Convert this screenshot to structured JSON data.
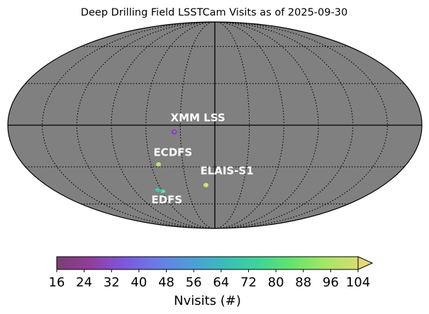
{
  "chart_data": {
    "type": "sky_map",
    "projection": "mollweide",
    "title": "Deep Drilling Field LSSTCam Visits as of 2025-09-30",
    "graticule": {
      "meridians_deg": [
        -150,
        -120,
        -90,
        -60,
        -30,
        0,
        30,
        60,
        90,
        120,
        150
      ],
      "parallels_deg": [
        -60,
        -30,
        0,
        30,
        60
      ],
      "style": "dotted",
      "axes_solid": true
    },
    "background_color": "#808080",
    "fields": [
      {
        "name": "XMM LSS",
        "lon_deg": 35.5,
        "lat_deg": -4.8,
        "nvisits": 30
      },
      {
        "name": "ECDFS",
        "lon_deg": 53.0,
        "lat_deg": -28.1,
        "nvisits": 96
      },
      {
        "name": "ELAIS-S1",
        "lon_deg": 9.5,
        "lat_deg": -44.0,
        "nvisits": 100
      },
      {
        "name": "EDFS",
        "lon_deg": 61.0,
        "lat_deg": -48.5,
        "nvisits": 60
      }
    ],
    "colorbar": {
      "label": "Nvisits (#)",
      "min": 16,
      "max": 104,
      "extend": "max",
      "ticks": [
        16,
        24,
        32,
        40,
        48,
        56,
        64,
        72,
        80,
        88,
        96,
        104
      ],
      "tick_labels": [
        "16",
        "24",
        "32",
        "40",
        "48",
        "56",
        "64",
        "72",
        "80",
        "88",
        "96",
        "104"
      ],
      "colormap": [
        "#7a3f72",
        "#913d9b",
        "#7d57dd",
        "#6b7be8",
        "#4d9dd8",
        "#3bbcb9",
        "#3ed39a",
        "#63e36e",
        "#a5e565",
        "#d6dd73"
      ],
      "extend_color": "#e6d77a"
    }
  }
}
